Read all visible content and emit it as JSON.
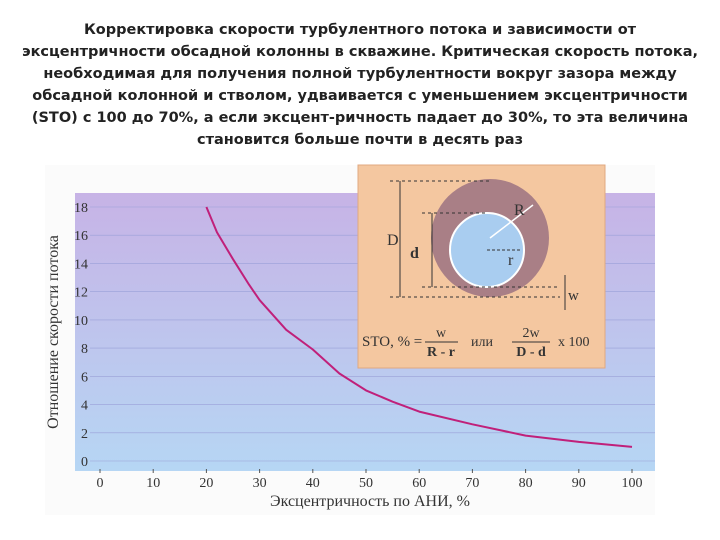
{
  "chart_data": {
    "type": "line",
    "title": [
      "Корректировка скорости турбулентного потока и зависимости от",
      "эксцентричности обсадной колонны в скважине. Критическая скорость потока,",
      "необходимая для получения полной турбулентности вокруг зазора между",
      "обсадной колонной и стволом, удваивается с уменьшением эксцентричности",
      "(STO) с 100 до 70%, а если эксцент-ричность падает до 30%, то эта величина",
      "становится больше почти в десять раз"
    ],
    "x_label": "Эксцентричность по АНИ, %",
    "y_label": "Отношение скорости потока",
    "x": [
      20,
      22,
      25,
      28,
      30,
      35,
      40,
      45,
      50,
      55,
      60,
      70,
      80,
      90,
      100
    ],
    "series": [
      {
        "name": "Отношение скорости потока",
        "color": "#c0207a",
        "values": [
          18,
          16.2,
          14.3,
          12.5,
          11.4,
          9.3,
          7.9,
          6.2,
          5.0,
          4.2,
          3.5,
          2.6,
          1.8,
          1.35,
          1.0
        ]
      }
    ],
    "xlim": [
      0,
      100
    ],
    "xticks": [
      0,
      10,
      20,
      30,
      40,
      50,
      60,
      70,
      80,
      90,
      100
    ],
    "ylim": [
      0,
      18
    ],
    "yticks": [
      0,
      2,
      4,
      6,
      8,
      10,
      12,
      14,
      16,
      18
    ],
    "grid": true
  },
  "inset": {
    "D": "D",
    "d": "d",
    "R": "R",
    "r": "r",
    "w": "w",
    "formula_left": "STO, % =",
    "num1": "w",
    "den1": "R - r",
    "or": "или",
    "num2": "2w",
    "den2": "D - d",
    "times": "x 100"
  }
}
